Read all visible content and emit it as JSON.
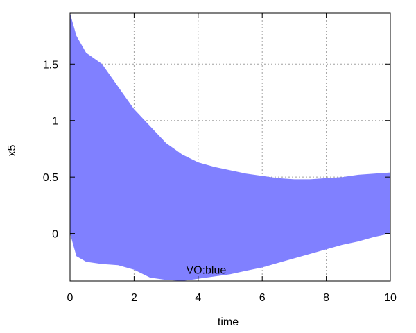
{
  "chart_data": {
    "type": "area",
    "title": "",
    "xlabel": "time",
    "ylabel": "x5",
    "xlim": [
      0,
      10
    ],
    "ylim": [
      -0.42,
      1.95
    ],
    "xticks": [
      0,
      2,
      4,
      6,
      8,
      10
    ],
    "xtick_labels": [
      "0",
      "2",
      "4",
      "6",
      "8",
      "10"
    ],
    "yticks": [
      0,
      0.5,
      1,
      1.5
    ],
    "ytick_labels": [
      "0",
      "0.5",
      "1",
      "1.5"
    ],
    "grid": true,
    "fill_color": "#8080ff",
    "annotation": {
      "text": "VO:blue",
      "x": 4.25,
      "y": -0.32
    },
    "series": [
      {
        "x": [
          0,
          0.2,
          0.5,
          1,
          1.5,
          2,
          2.5,
          3,
          3.5,
          4,
          4.5,
          5,
          5.5,
          6,
          6.5,
          7,
          7.5,
          8,
          8.5,
          9,
          9.5,
          10
        ],
        "upper": [
          1.95,
          1.75,
          1.6,
          1.5,
          1.3,
          1.1,
          0.95,
          0.8,
          0.7,
          0.63,
          0.59,
          0.56,
          0.53,
          0.51,
          0.49,
          0.48,
          0.48,
          0.49,
          0.5,
          0.52,
          0.53,
          0.54
        ],
        "lower": [
          0.0,
          -0.2,
          -0.25,
          -0.27,
          -0.28,
          -0.32,
          -0.39,
          -0.41,
          -0.42,
          -0.4,
          -0.38,
          -0.36,
          -0.33,
          -0.3,
          -0.26,
          -0.22,
          -0.18,
          -0.14,
          -0.1,
          -0.07,
          -0.03,
          0.0
        ]
      }
    ]
  }
}
